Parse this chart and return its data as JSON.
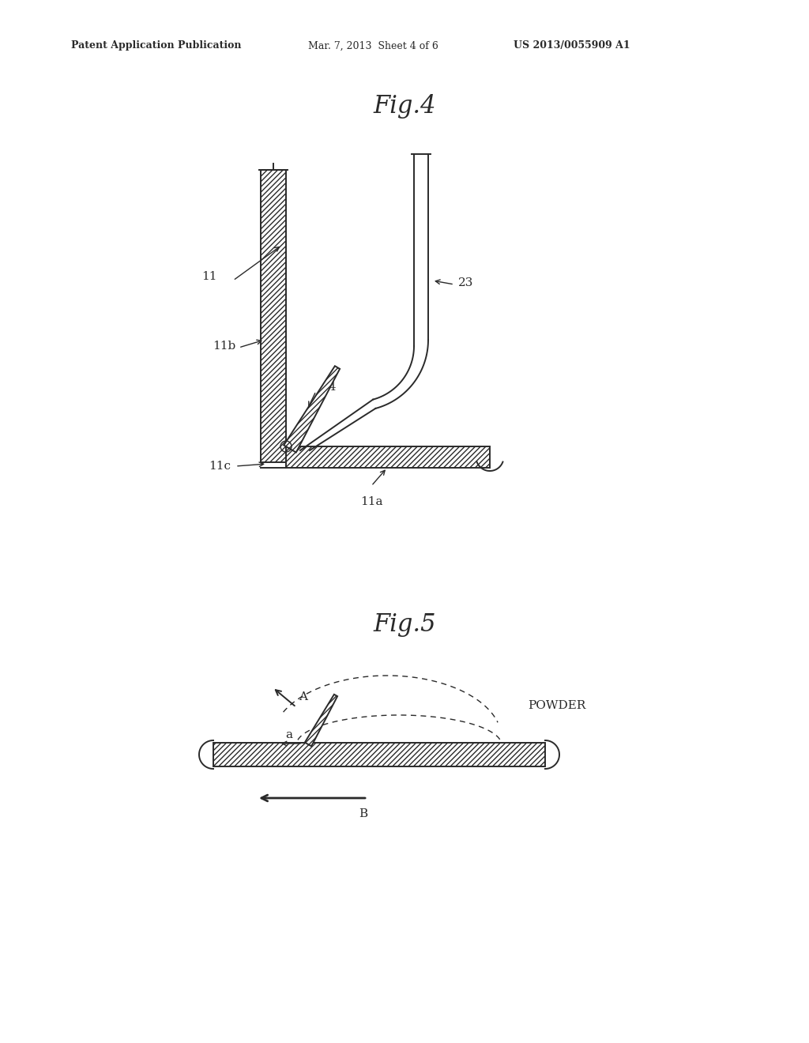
{
  "bg_color": "#ffffff",
  "line_color": "#2a2a2a",
  "header_text1": "Patent Application Publication",
  "header_text2": "Mar. 7, 2013  Sheet 4 of 6",
  "header_text3": "US 2013/0055909 A1",
  "fig4_title": "Fig.4",
  "fig5_title": "Fig.5"
}
